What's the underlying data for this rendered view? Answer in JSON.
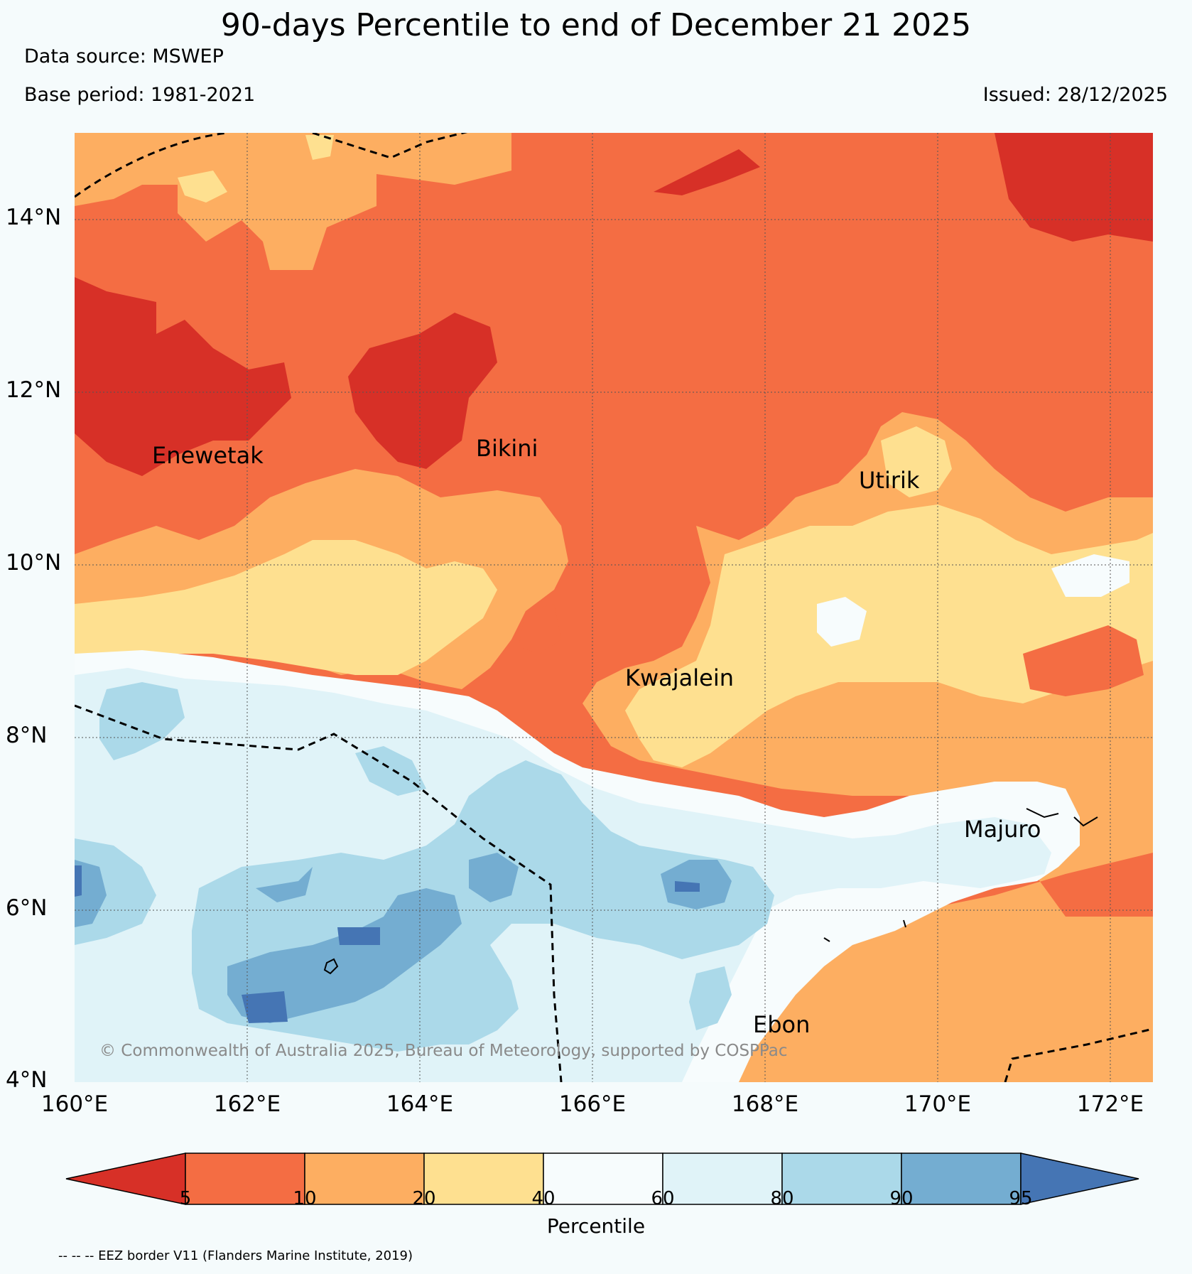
{
  "header": {
    "title": "90-days Percentile to end of December 21 2025",
    "data_source": "Data source: MSWEP",
    "base_period": "Base period: 1981-2021",
    "issued": "Issued: 28/12/2025"
  },
  "map": {
    "lat_labels": [
      "14°N",
      "12°N",
      "10°N",
      "8°N",
      "6°N",
      "4°N"
    ],
    "lon_labels": [
      "160°E",
      "162°E",
      "164°E",
      "166°E",
      "168°E",
      "170°E",
      "172°E"
    ],
    "islands": [
      "Enewetak",
      "Bikini",
      "Utirik",
      "Kwajalein",
      "Majuro",
      "Ebon"
    ],
    "copyright": "© Commonwealth of Australia 2025, Bureau of Meteorology, supported by COSPPac"
  },
  "colorbar": {
    "ticks": [
      "5",
      "10",
      "20",
      "40",
      "60",
      "80",
      "90",
      "95"
    ],
    "label": "Percentile",
    "colors": [
      "#d73027",
      "#f46d43",
      "#fdae61",
      "#fee090",
      "#f7fcfd",
      "#e0f3f8",
      "#abd9e9",
      "#74add1",
      "#4575b4"
    ]
  },
  "footer": {
    "eez_note": "-- -- -- EEZ border V11 (Flanders Marine Institute, 2019)"
  }
}
